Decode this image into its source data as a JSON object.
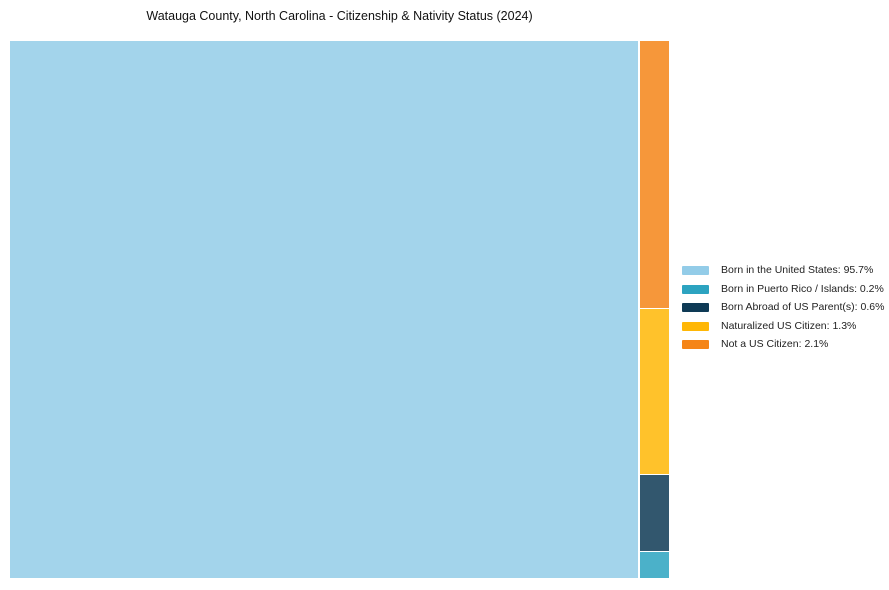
{
  "title": "Watauga County, North Carolina - Citizenship & Nativity Status (2024)",
  "chart_data": {
    "type": "treemap",
    "title": "Watauga County, North Carolina - Citizenship & Nativity Status (2024)",
    "items": [
      {
        "label": "Born in the United States",
        "value": 95.7,
        "color": "#93CCE8"
      },
      {
        "label": "Born in Puerto Rico / Islands",
        "value": 0.2,
        "color": "#2CA3C0"
      },
      {
        "label": "Born Abroad of US Parent(s)",
        "value": 0.6,
        "color": "#0E3A55"
      },
      {
        "label": "Naturalized US Citizen",
        "value": 1.3,
        "color": "#FFB706"
      },
      {
        "label": "Not a US Citizen",
        "value": 2.1,
        "color": "#F58518"
      }
    ],
    "legend": {
      "position": "right-center",
      "entries": [
        "Born in the United States: 95.7%",
        "Born in Puerto Rico / Islands: 0.2%",
        "Born Abroad of US Parent(s): 0.6%",
        "Naturalized US Citizen: 1.3%",
        "Not a US Citizen: 2.1%"
      ]
    },
    "layout_hints": {
      "background": "#ffffff",
      "tile_opacity": 0.85,
      "tile_sort": "descending",
      "small_tiles_column": "right, stacked top-to-bottom descending",
      "grid": false
    }
  }
}
